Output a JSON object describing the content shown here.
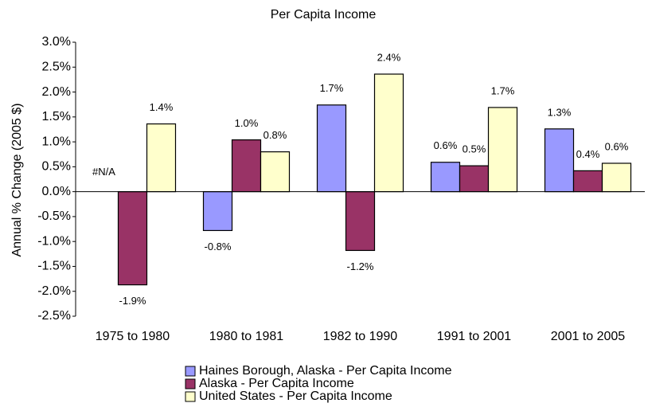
{
  "chart_data": {
    "type": "bar",
    "title": "Per Capita Income",
    "y_label": "Annual % Change (2005 $)",
    "categories": [
      "1975 to 1980",
      "1980 to 1981",
      "1982 to 1990",
      "1991 to 2001",
      "2001 to 2005"
    ],
    "series": [
      {
        "name": "Haines Borough, Alaska - Per Capita Income",
        "color": "#9999ff",
        "values": [
          null,
          -0.78,
          1.74,
          0.59,
          1.26
        ],
        "value_labels": [
          "#N/A",
          "-0.8%",
          "1.7%",
          "0.6%",
          "1.3%"
        ]
      },
      {
        "name": "Alaska - Per Capita Income",
        "color": "#993366",
        "values": [
          -1.87,
          1.04,
          -1.18,
          0.52,
          0.42
        ],
        "value_labels": [
          "-1.9%",
          "1.0%",
          "-1.2%",
          "0.5%",
          "0.4%"
        ]
      },
      {
        "name": "United States - Per Capita Income",
        "color": "#ffffcc",
        "values": [
          1.36,
          0.8,
          2.36,
          1.69,
          0.57
        ],
        "value_labels": [
          "1.4%",
          "0.8%",
          "2.4%",
          "1.7%",
          "0.6%"
        ]
      }
    ],
    "ylim": [
      -2.5,
      3.0
    ],
    "yticks": [
      {
        "value": -2.5,
        "label": "-2.5%"
      },
      {
        "value": -2.0,
        "label": "-2.0%"
      },
      {
        "value": -1.5,
        "label": "-1.5%"
      },
      {
        "value": -1.0,
        "label": "-1.0%"
      },
      {
        "value": -0.5,
        "label": "-0.5%"
      },
      {
        "value": 0,
        "label": "0.0%"
      },
      {
        "value": 0.5,
        "label": "0.5%"
      },
      {
        "value": 1.0,
        "label": "1.0%"
      },
      {
        "value": 1.5,
        "label": "1.5%"
      },
      {
        "value": 2.0,
        "label": "2.0%"
      },
      {
        "value": 2.5,
        "label": "2.5%"
      },
      {
        "value": 3.0,
        "label": "3.0%"
      }
    ],
    "grid": false,
    "legend": "bottom"
  }
}
